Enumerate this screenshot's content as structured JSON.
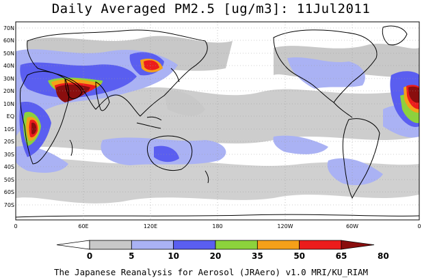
{
  "title": "Daily Averaged PM2.5 [ug/m3]: 11Jul2011",
  "footer": "The Japanese Reanalysis for Aerosol (JRAero) v1.0 MRI/KU_RIAM",
  "map": {
    "projection": "equirectangular",
    "lat_labels": [
      "70N",
      "60N",
      "50N",
      "40N",
      "30N",
      "20N",
      "10N",
      "EQ",
      "10S",
      "20S",
      "30S",
      "40S",
      "50S",
      "60S",
      "70S"
    ],
    "lon_labels": [
      "0",
      "60E",
      "120E",
      "180",
      "120W",
      "60W",
      "0"
    ],
    "gridlines": "dotted"
  },
  "colorbar": {
    "levels": [
      "0",
      "5",
      "10",
      "20",
      "35",
      "50",
      "65",
      "80"
    ],
    "colors": [
      "#ffffff",
      "#c8c8c8",
      "#aab2f4",
      "#5a5ef0",
      "#8cd23c",
      "#f5a019",
      "#ec1c1c",
      "#8a0e0e"
    ]
  }
}
